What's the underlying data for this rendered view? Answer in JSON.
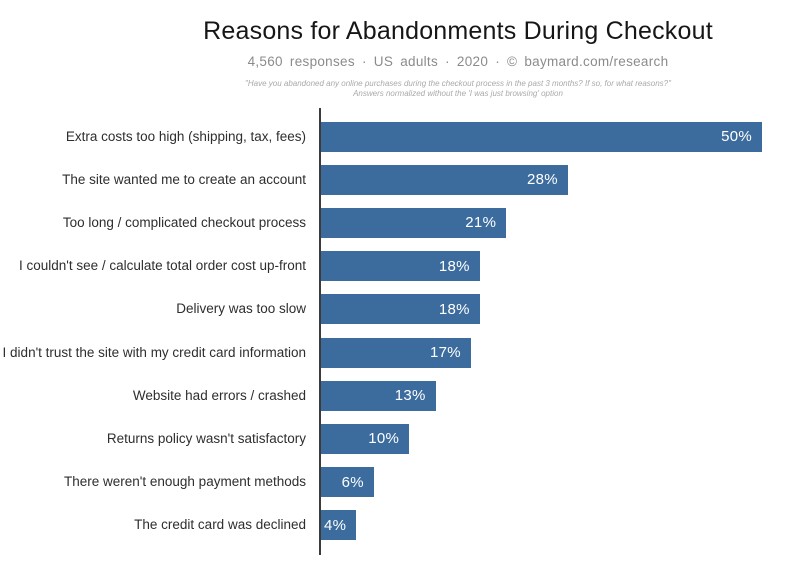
{
  "chart_data": {
    "type": "bar",
    "orientation": "horizontal",
    "title": "Reasons for Abandonments During Checkout",
    "subtitle": "4,560 responses · US adults · 2020 · © baymard.com/research",
    "annotations": [
      "\"Have you abandoned any online purchases during the checkout process in the past 3 months? If so, for what reasons?\"",
      "Answers normalized without the 'I was just browsing' option"
    ],
    "categories": [
      "Extra costs too high (shipping, tax, fees)",
      "The site wanted me to create an account",
      "Too long / complicated checkout process",
      "I couldn't see / calculate total order cost up-front",
      "Delivery was too slow",
      "I didn't trust the site with my credit card information",
      "Website had errors / crashed",
      "Returns policy wasn't satisfactory",
      "There weren't enough payment methods",
      "The credit card was declined"
    ],
    "values": [
      50,
      28,
      21,
      18,
      18,
      17,
      13,
      10,
      6,
      4
    ],
    "value_suffix": "%",
    "xlabel": "",
    "ylabel": "",
    "xlim": [
      0,
      54.6
    ],
    "grid": false,
    "legend": false,
    "bar_color": "#3c6c9e",
    "value_label_color": "#ffffff",
    "axis_color": "#3b3b3b"
  }
}
